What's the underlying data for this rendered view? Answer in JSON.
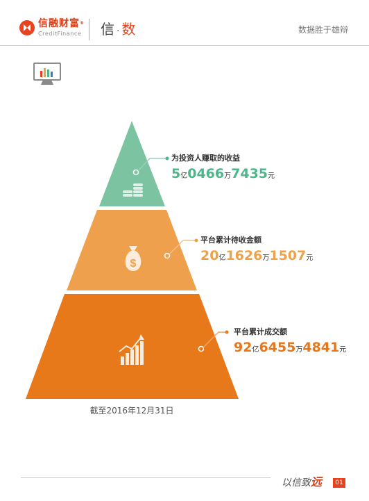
{
  "header": {
    "brand_cn": "信融财富",
    "brand_mark": "®",
    "brand_en": "CreditFinance",
    "title_part1": "信",
    "title_dot": "·",
    "title_part2": "数",
    "slogan": "数据胜于雄辩"
  },
  "colors": {
    "brand": "#e8431e",
    "tier_top": "#7cc3a1",
    "tier_mid": "#efa04c",
    "tier_bottom": "#e8791b"
  },
  "tiers": [
    {
      "caption": "为投资人赚取的收益",
      "icon": "coin-stack-icon",
      "value_parts": [
        "5",
        "亿",
        "0466",
        "万",
        "7435",
        "元"
      ]
    },
    {
      "caption": "平台累计待收金额",
      "icon": "money-bag-icon",
      "value_parts": [
        "20",
        "亿",
        "1626",
        "万",
        "1507",
        "元"
      ]
    },
    {
      "caption": "平台累计成交额",
      "icon": "growth-chart-icon",
      "value_parts": [
        "92",
        "亿",
        "6455",
        "万",
        "4841",
        "元"
      ]
    }
  ],
  "date_note": "截至2016年12月31日",
  "footer": {
    "slogan_a": "以信致",
    "slogan_b": "远",
    "page": "01"
  }
}
